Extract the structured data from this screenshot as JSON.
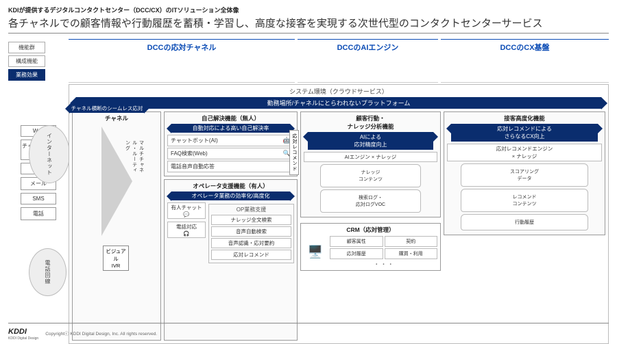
{
  "pretitle": "KDIが提供するデジタルコンタクトセンター（DCC/CX）のITソリューション全体像",
  "title": "各チャネルでの顧客情報や行動履歴を蓄積・学習し、高度な接客を実現する次世代型のコンタクトセンターサービス",
  "legend": {
    "a": "機能群",
    "b": "構成機能",
    "c": "業務効果"
  },
  "sections": {
    "s1": "DCCの応対チャネル",
    "s2": "DCCのAIエンジン",
    "s3": "DCCのCX基盤"
  },
  "env": "システム環境（クラウドサービス）",
  "platform": "勤務場所/チャネルにとらわれないプラットフォーム",
  "channels": {
    "c0": "Web",
    "c1": "チャットボット",
    "c2": "LINE",
    "c3": "メール",
    "c4": "SMS",
    "c5": "電話"
  },
  "clouds": {
    "internet": "インターネット",
    "tel": "電話回線"
  },
  "colA": {
    "title": "チャネル",
    "ribbon": "チャネル横断のシームレス応対",
    "ivr": "ビジュアル\nIVR",
    "router": "マルチチャネル・ルーティング"
  },
  "selfservice": {
    "title": "自己解決機能（無人）",
    "ribbon": "自動対応による高い自己解決率",
    "i0": "チャットボット(AI)",
    "i1": "FAQ検索(Web)",
    "i2": "電話音声自動応答",
    "sidetag": "応対レコメンド"
  },
  "operator": {
    "title": "オペレータ支援機能（有人）",
    "ribbon": "オペレータ業務の効率化/高度化",
    "left0": "有人チャット",
    "left1": "電話対応",
    "grp": "OP業務支援",
    "g0": "ナレッジ全文検索",
    "g1": "音声自動検索",
    "g2": "音声認識・応対要約",
    "g3": "応対レコメンド"
  },
  "ai": {
    "title": "顧客行動・\nナレッジ分析機能",
    "ribbon": "AIによる\n応対精度向上",
    "engine": "AIエンジン × ナレッジ",
    "db0": "ナレッジ\nコンテンツ",
    "db1": "検索ログ・\n応対ログVOC"
  },
  "cx": {
    "title": "接客高度化機能",
    "ribbon": "応対レコメンドによる\nさらなるCX向上",
    "engine": "応対レコメンドエンジン\n× ナレッジ",
    "d0": "スコアリング\nデータ",
    "d1": "レコメンド\nコンテンツ",
    "d2": "行動履歴"
  },
  "crm": {
    "title": "CRM（応対管理）",
    "c0": "顧客属性",
    "c1": "契約",
    "c2": "応対履歴",
    "c3": "購買・利用",
    "dots": "・ ・ ・"
  },
  "footer": {
    "logo": "KDDI",
    "logosub": "KDDI Digital Design",
    "copy": "Copyrightⓒ KDDI Digital Design, Inc. All rights reserved."
  },
  "colors": {
    "navy": "#0a2d6e",
    "blue": "#0a4bb5",
    "border": "#999",
    "bg": "#fafafa"
  }
}
